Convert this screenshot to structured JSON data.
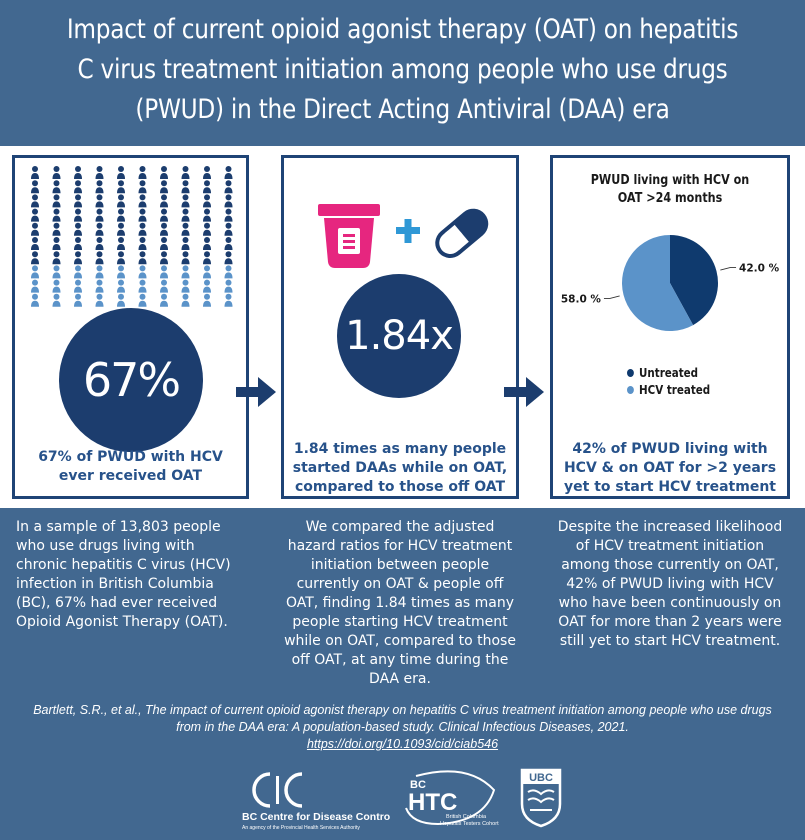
{
  "header": {
    "title": "Impact of current opioid agonist therapy (OAT) on hepatitis\nC virus treatment initiation among people who use drugs\n(PWUD) in the Direct Acting Antiviral (DAA) era"
  },
  "colors": {
    "background": "#426890",
    "navy": "#1c3d6e",
    "panel_border": "#1f4476",
    "light_blue": "#5b93c9",
    "caption_blue": "#27528a"
  },
  "panel1": {
    "stat": "67%",
    "caption": "67% of PWUD with HCV ever received OAT",
    "people_total": 100,
    "people_highlighted_fraction": 0.67
  },
  "panel2": {
    "stat": "1.84x",
    "caption": "1.84 times as many people started DAAs while on OAT, compared to those off OAT",
    "icons": [
      "pill-cup-icon",
      "plus-icon",
      "capsule-icon"
    ]
  },
  "panel3": {
    "chart_title": "PWUD living with HCV on OAT >24 months",
    "caption": "42% of PWUD living with HCV & on OAT for >2 years yet to start HCV treatment"
  },
  "chart_data": {
    "type": "pie",
    "title": "PWUD living with HCV on OAT >24 months",
    "slices": [
      {
        "label": "Untreated",
        "value": 42.0,
        "display": "42.0 %",
        "color": "#0f3a6e"
      },
      {
        "label": "HCV treated",
        "value": 58.0,
        "display": "58.0 %",
        "color": "#5b93c9"
      }
    ],
    "legend_position": "bottom"
  },
  "descriptions": {
    "d1": "In a sample of 13,803 people who use drugs living with chronic hepatitis C virus (HCV) infection in British Columbia (BC), 67% had ever received Opioid Agonist Therapy (OAT).",
    "d2": "We compared the adjusted hazard ratios for HCV treatment initiation between people currently on OAT & people off OAT, finding 1.84 times as many people starting HCV treatment while on OAT, compared to those off OAT, at any time during the DAA era.",
    "d3": "Despite the increased likelihood of HCV treatment initiation among those currently on OAT, 42% of PWUD living with HCV who have been continuously on OAT for more than 2 years were still yet to start HCV treatment."
  },
  "citation": {
    "text": "Bartlett, S.R., et al., The impact of current opioid agonist therapy on hepatitis C virus treatment initiation among people who use drugs from in the DAA era: A population-based study. Clinical Infectious Diseases, 2021.",
    "link": "https://doi.org/10.1093/cid/ciab546"
  },
  "logos": {
    "bccdc_name": "BC Centre for Disease Control",
    "bccdc_sub": "An agency of the Provincial Health Services Authority",
    "bchtc_top": "BC",
    "bchtc_main": "HTC",
    "bchtc_sub1": "British Columbia",
    "bchtc_sub2": "Hepatitis Testers Cohort",
    "ubc": "UBC"
  }
}
